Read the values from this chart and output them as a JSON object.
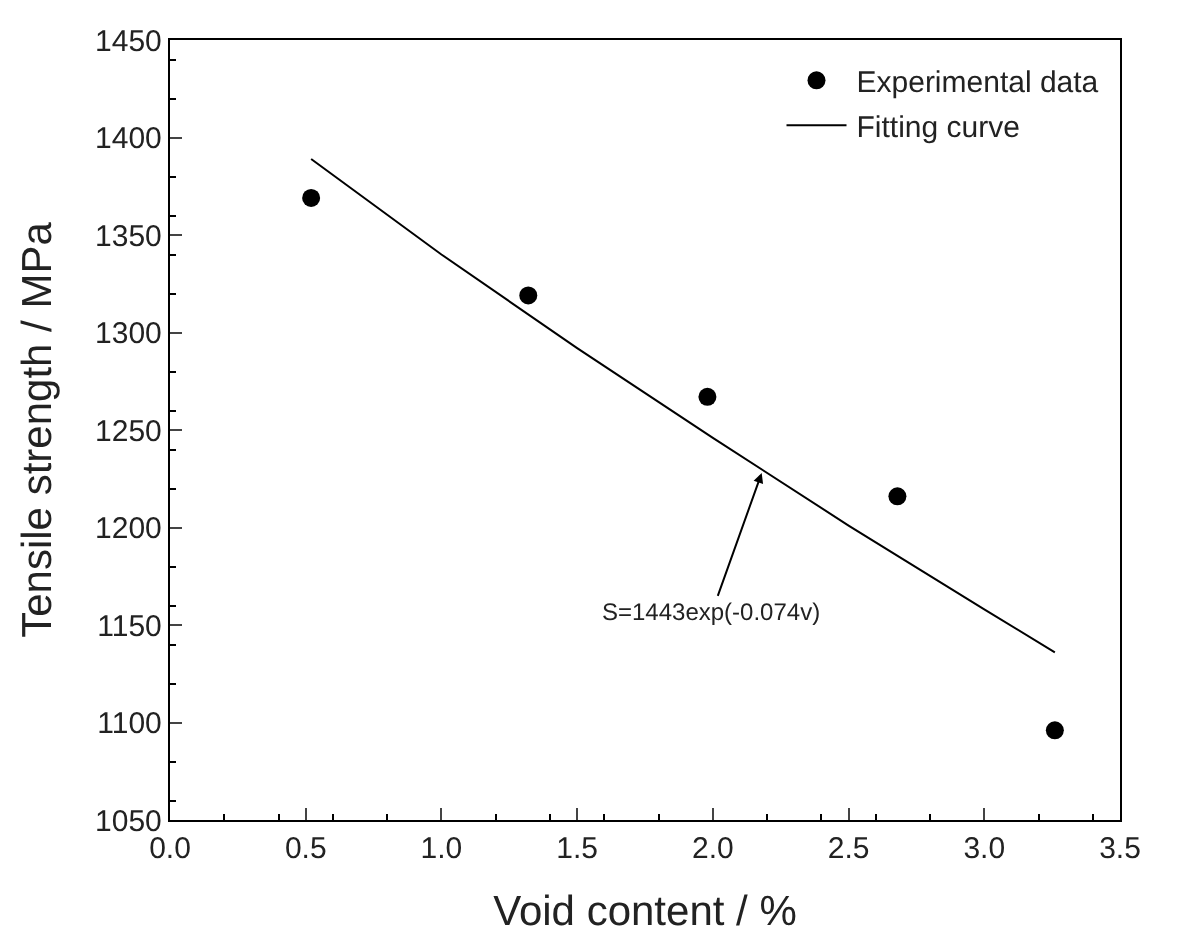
{
  "chart_data": {
    "type": "scatter",
    "xlabel": "Void content / %",
    "ylabel": "Tensile strength / MPa",
    "xlim": [
      0.0,
      3.5
    ],
    "xticks": [
      {
        "value": 0,
        "label": "0.0"
      },
      0.5,
      {
        "value": 1,
        "label": "1.0"
      },
      1.5,
      {
        "value": 2,
        "label": "2.0"
      },
      2.5,
      {
        "value": 3,
        "label": "3.0"
      },
      3.5
    ],
    "ylim": [
      1050,
      1450
    ],
    "yticks": [
      1050,
      1100,
      1150,
      1200,
      1250,
      1300,
      1350,
      1400,
      1450
    ],
    "legend": "top right",
    "series": [
      {
        "name": "Experimental data",
        "marker": "circle",
        "color": "#000000",
        "x": [
          0.52,
          1.32,
          1.98,
          2.68,
          3.26
        ],
        "values": [
          1369,
          1319,
          1267,
          1216,
          1096
        ]
      },
      {
        "name": "Fitting curve",
        "type": "line",
        "marker": "none",
        "line_style": "solid",
        "color": "#000000",
        "x": [
          0.52,
          1.0,
          1.5,
          2.0,
          2.5,
          3.0,
          3.26
        ],
        "values": [
          1389,
          1340,
          1292,
          1246,
          1201,
          1158,
          1136
        ]
      }
    ],
    "annotations": [
      {
        "text": "S=1443exp(-0.074v)",
        "x": 2.18,
        "y": 1228
      }
    ]
  }
}
